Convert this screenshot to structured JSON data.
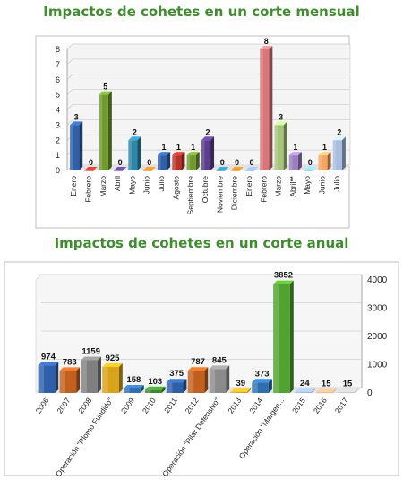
{
  "chart_data": [
    {
      "type": "bar",
      "title": "Impactos de cohetes en un corte mensual",
      "categories": [
        "Enero",
        "Febrero",
        "Marzo",
        "Abril",
        "Mayo",
        "Junio",
        "Julio",
        "Agosto",
        "Septiembre",
        "Octubre",
        "Noviembre",
        "Diciembre",
        "Enero",
        "Febrero",
        "Marzo",
        "Abril**",
        "Mayo",
        "Junio",
        "Julio"
      ],
      "values": [
        3,
        0,
        5,
        0,
        2,
        0,
        1,
        1,
        1,
        2,
        0,
        0,
        0,
        8,
        3,
        1,
        0,
        1,
        2
      ],
      "colors": [
        "#2f5fa8",
        "#b7332a",
        "#6e9a2e",
        "#5b3e8c",
        "#2e86a8",
        "#e07b1e",
        "#2f5fa8",
        "#b7332a",
        "#6e9a2e",
        "#5b3e8c",
        "#2e86a8",
        "#e07b1e",
        "#7f9fd6",
        "#d9767a",
        "#a6c47a",
        "#9b7fbf",
        "#78b8d2",
        "#f2a564",
        "#a7bcdf"
      ],
      "ylim": [
        0,
        8
      ],
      "yticks": [
        0,
        1,
        2,
        3,
        4,
        5,
        6,
        7,
        8
      ],
      "grid": true
    },
    {
      "type": "bar",
      "title": "Impactos de cohetes en un corte anual",
      "categories": [
        "2006",
        "2007",
        "2008",
        "Operación \"Plomo Fundido\"",
        "2009",
        "2010",
        "2011",
        "2012",
        "Operación \"Pilar Defensivo\"",
        "2013",
        "2014",
        "Operación \"Margen...",
        "2015",
        "2016",
        "2017"
      ],
      "values": [
        974,
        783,
        1159,
        925,
        158,
        103,
        375,
        787,
        845,
        39,
        373,
        3852,
        24,
        15,
        15
      ],
      "colors": [
        "#2f5fa8",
        "#c4601e",
        "#7f7f7f",
        "#d9a21b",
        "#2f6fb0",
        "#3d8a2e",
        "#2f5fa8",
        "#c4601e",
        "#8a8a8a",
        "#d9a21b",
        "#2f6fb0",
        "#4fa32e",
        "#8ea6d0",
        "#e0a07a",
        "#b0b0b0"
      ],
      "ylim": [
        0,
        4000
      ],
      "yticks": [
        0,
        1000,
        2000,
        3000,
        4000
      ],
      "grid": true
    }
  ]
}
